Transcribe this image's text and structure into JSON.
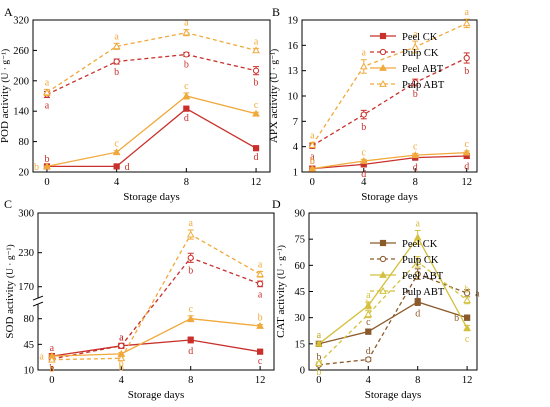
{
  "figure": {
    "x_values": [
      0,
      4,
      8,
      12
    ]
  },
  "chart_data": [
    {
      "panel": "A",
      "type": "line",
      "xlabel": "Storage days",
      "ylabel": "POD activity",
      "yunit": "(U · g⁻¹)",
      "x": [
        0,
        4,
        8,
        12
      ],
      "xlim": [
        -0.8,
        12.8
      ],
      "ylim": [
        20,
        320
      ],
      "yticks": [
        20,
        80,
        140,
        200,
        260,
        320
      ],
      "show_legend": false,
      "series": [
        {
          "name": "Peel CK",
          "values": [
            31,
            31,
            145,
            67
          ],
          "errors": [
            1,
            2,
            3,
            2
          ],
          "color": "#c9302c",
          "dashed": false,
          "marker": "square",
          "filled": true,
          "letters": [
            "b",
            "d",
            "d",
            "d"
          ],
          "letter_pos": [
            "above",
            "right",
            "below",
            "below"
          ]
        },
        {
          "name": "Pulp CK",
          "values": [
            173,
            238,
            252,
            220
          ],
          "errors": [
            6,
            5,
            4,
            8
          ],
          "color": "#c9302c",
          "dashed": true,
          "marker": "circle",
          "filled": false,
          "letters": [
            "a",
            "b",
            "b",
            "b"
          ],
          "letter_pos": [
            "below",
            "below",
            "below",
            "below"
          ]
        },
        {
          "name": "Peel ABT",
          "values": [
            31,
            59,
            170,
            135
          ],
          "errors": [
            1,
            3,
            6,
            3
          ],
          "color": "#f0a93b",
          "dashed": false,
          "marker": "triangle",
          "filled": true,
          "letters": [
            "b",
            "c",
            "c",
            "c"
          ],
          "letter_pos": [
            "left",
            "above",
            "above",
            "above"
          ]
        },
        {
          "name": "Pulp ABT",
          "values": [
            177,
            268,
            295,
            260
          ],
          "errors": [
            6,
            6,
            6,
            4
          ],
          "color": "#f0a93b",
          "dashed": true,
          "marker": "triangle",
          "filled": false,
          "letters": [
            "a",
            "a",
            "a",
            "a"
          ],
          "letter_pos": [
            "above",
            "above",
            "above",
            "above"
          ]
        }
      ]
    },
    {
      "panel": "B",
      "type": "line",
      "xlabel": "Storage days",
      "ylabel": "APX activity",
      "yunit": "(U · g⁻¹)",
      "x": [
        0,
        4,
        8,
        12
      ],
      "xlim": [
        -0.8,
        12.8
      ],
      "ylim": [
        1,
        19
      ],
      "yticks": [
        1,
        4,
        7,
        10,
        13,
        16,
        19
      ],
      "show_legend": true,
      "series": [
        {
          "name": "Peel CK",
          "values": [
            1.4,
            1.9,
            2.7,
            2.9
          ],
          "errors": [
            0.1,
            0.2,
            0.2,
            0.3
          ],
          "color": "#c9302c",
          "dashed": false,
          "marker": "square",
          "filled": true,
          "letters": [
            "b",
            "d",
            "d",
            "d"
          ],
          "letter_pos": [
            "above",
            "below",
            "below",
            "below"
          ]
        },
        {
          "name": "Pulp CK",
          "values": [
            4.1,
            7.8,
            11.6,
            14.5
          ],
          "errors": [
            0.3,
            0.5,
            0.4,
            0.6
          ],
          "color": "#c9302c",
          "dashed": true,
          "marker": "circle",
          "filled": false,
          "letters": [
            "a",
            "b",
            "b",
            "b"
          ],
          "letter_pos": [
            "below",
            "below",
            "below",
            "below"
          ]
        },
        {
          "name": "Peel ABT",
          "values": [
            1.4,
            2.3,
            3.0,
            3.3
          ],
          "errors": [
            0.1,
            0.2,
            0.2,
            0.2
          ],
          "color": "#f0a93b",
          "dashed": false,
          "marker": "triangle",
          "filled": true,
          "letters": [
            "b",
            "c",
            "c",
            "c"
          ],
          "letter_pos": [
            "above",
            "above",
            "above",
            "above"
          ]
        },
        {
          "name": "Pulp ABT",
          "values": [
            4.2,
            13.5,
            15.8,
            18.6
          ],
          "errors": [
            0.3,
            0.8,
            0.7,
            0.5
          ],
          "color": "#f0a93b",
          "dashed": true,
          "marker": "triangle",
          "filled": false,
          "letters": [
            "a",
            "a",
            "a",
            "a"
          ],
          "letter_pos": [
            "above",
            "above",
            "above",
            "above"
          ]
        }
      ]
    },
    {
      "panel": "C",
      "type": "line",
      "xlabel": "Storage days",
      "ylabel": "SOD activity",
      "yunit": "(U · g⁻¹)",
      "x": [
        0,
        4,
        8,
        12
      ],
      "xlim": [
        -0.8,
        12.8
      ],
      "broken_y_axis": true,
      "lower_range": [
        10,
        100
      ],
      "upper_range": [
        150,
        300
      ],
      "yticks": [
        10,
        45,
        80,
        170,
        230,
        300
      ],
      "show_legend": false,
      "series": [
        {
          "name": "Peel CK",
          "values": [
            29,
            43,
            51,
            35
          ],
          "errors": [
            1.5,
            2,
            4,
            1.5
          ],
          "color": "#c9302c",
          "dashed": false,
          "marker": "square",
          "filled": true,
          "letters": [
            "a",
            "a",
            "d",
            "c"
          ],
          "letter_pos": [
            "above",
            "above",
            "below",
            "below"
          ]
        },
        {
          "name": "Pulp CK",
          "values": [
            25,
            43,
            221,
            175
          ],
          "errors": [
            1.5,
            2,
            8,
            5
          ],
          "color": "#c9302c",
          "dashed": true,
          "marker": "circle",
          "filled": false,
          "letters": [
            "b",
            "a",
            "b",
            "a"
          ],
          "letter_pos": [
            "below",
            "above",
            "below",
            "below"
          ]
        },
        {
          "name": "Peel ABT",
          "values": [
            29,
            32,
            80,
            70
          ],
          "errors": [
            1.5,
            2,
            4,
            2
          ],
          "color": "#f0a93b",
          "dashed": false,
          "marker": "triangle",
          "filled": true,
          "letters": [
            "a",
            "b",
            "c",
            "b"
          ],
          "letter_pos": [
            "left",
            "below",
            "above",
            "above"
          ]
        },
        {
          "name": "Pulp ABT",
          "values": [
            24,
            26,
            262,
            192
          ],
          "errors": [
            1.5,
            2,
            8,
            5
          ],
          "color": "#f0a93b",
          "dashed": true,
          "marker": "triangle",
          "filled": false,
          "letters": [
            "b",
            "b",
            "a",
            "a"
          ],
          "letter_pos": [
            "below",
            "below",
            "above",
            "above"
          ]
        }
      ]
    },
    {
      "panel": "D",
      "type": "line",
      "xlabel": "Storage days",
      "ylabel": "CAT activity",
      "yunit": "(U · g⁻¹)",
      "x": [
        0,
        4,
        8,
        12
      ],
      "xlim": [
        -0.8,
        12.8
      ],
      "ylim": [
        0,
        90
      ],
      "yticks": [
        0,
        15,
        30,
        45,
        60,
        75,
        90
      ],
      "show_legend": true,
      "series": [
        {
          "name": "Peel CK",
          "values": [
            15,
            22,
            39,
            30
          ],
          "errors": [
            1,
            1.5,
            2,
            1.5
          ],
          "color": "#8b5a2b",
          "dashed": false,
          "marker": "square",
          "filled": true,
          "letters": [
            "a",
            "c",
            "d",
            "b"
          ],
          "letter_pos": [
            "above",
            "above",
            "below",
            "left"
          ]
        },
        {
          "name": "Pulp CK",
          "values": [
            3,
            6,
            55,
            44
          ],
          "errors": [
            0.5,
            1,
            3,
            2
          ],
          "color": "#8b5a2b",
          "dashed": true,
          "marker": "circle",
          "filled": false,
          "letters": [
            "b",
            "d",
            "b",
            "a"
          ],
          "letter_pos": [
            "above",
            "above",
            "above",
            "right"
          ]
        },
        {
          "name": "Peel ABT",
          "values": [
            15,
            37,
            76,
            24
          ],
          "errors": [
            1,
            2,
            4,
            1.5
          ],
          "color": "#d4c03c",
          "dashed": false,
          "marker": "triangle",
          "filled": true,
          "letters": [
            "a",
            "a",
            "a",
            "c"
          ],
          "letter_pos": [
            "above",
            "above",
            "above",
            "below"
          ]
        },
        {
          "name": "Pulp ABT",
          "values": [
            4,
            32,
            62,
            40
          ],
          "errors": [
            0.5,
            2,
            3,
            2
          ],
          "color": "#d4c03c",
          "dashed": true,
          "marker": "triangle",
          "filled": false,
          "letters": [
            "b",
            "b",
            "c",
            "b"
          ],
          "letter_pos": [
            "below",
            "above",
            "below",
            "above"
          ]
        }
      ]
    }
  ]
}
